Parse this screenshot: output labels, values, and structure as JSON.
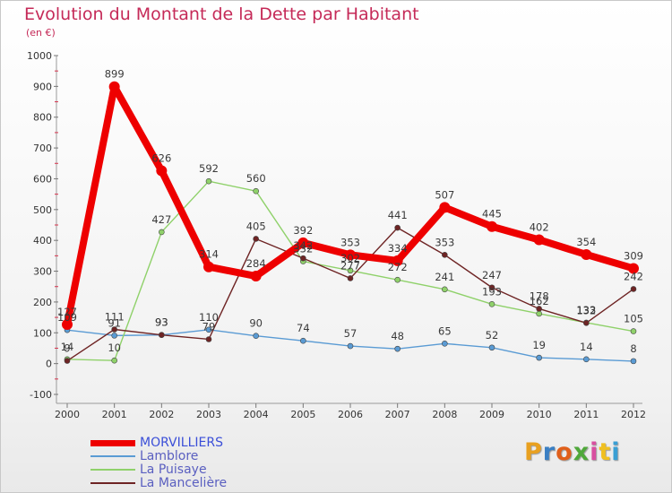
{
  "header": {
    "title": "Evolution du Montant de la Dette par Habitant",
    "unit": "(en €)"
  },
  "brand": {
    "text": "Proxiti",
    "colors": [
      "#e8a020",
      "#3a7fc4",
      "#e05f1a",
      "#4fa83a",
      "#d84fa0",
      "#f0c020",
      "#3a9fd4"
    ]
  },
  "colors": {
    "title": "#c52a58",
    "axis_ticks": "#d8344e",
    "grid": "#dddddd"
  },
  "chart_data": {
    "type": "line",
    "x": [
      2000,
      2001,
      2002,
      2003,
      2004,
      2005,
      2006,
      2007,
      2008,
      2009,
      2010,
      2011,
      2012
    ],
    "ylim": [
      -100,
      1000
    ],
    "yticks": [
      -100,
      0,
      100,
      200,
      300,
      400,
      500,
      600,
      700,
      800,
      900,
      1000
    ],
    "grid": false,
    "legend_position": "bottom-left",
    "series": [
      {
        "name": "MORVILLIERS",
        "color": "#ee0000",
        "values": [
          127,
          899,
          626,
          314,
          284,
          392,
          353,
          334,
          507,
          445,
          402,
          354,
          309
        ]
      },
      {
        "name": "Lamblore",
        "color": "#5a9bd4",
        "values": [
          109,
          91,
          93,
          110,
          90,
          74,
          57,
          48,
          65,
          52,
          19,
          14,
          8
        ]
      },
      {
        "name": "La Puisaye",
        "color": "#8fd16a",
        "values": [
          14,
          10,
          427,
          592,
          560,
          332,
          302,
          272,
          241,
          193,
          162,
          133,
          105
        ]
      },
      {
        "name": "La Mancelière",
        "color": "#6e2424",
        "values": [
          9,
          111,
          93,
          79,
          405,
          342,
          277,
          441,
          353,
          247,
          178,
          132,
          242
        ]
      }
    ]
  }
}
